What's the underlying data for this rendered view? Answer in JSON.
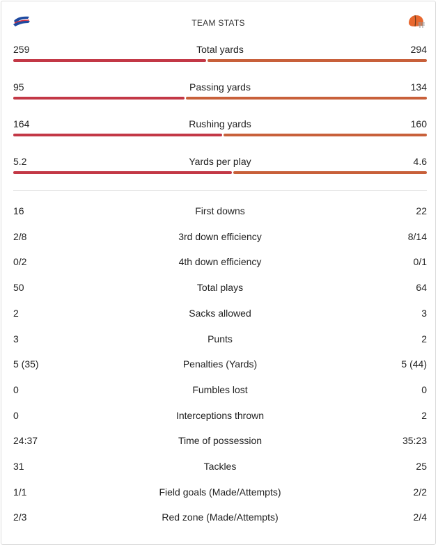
{
  "header": {
    "title": "TEAM STATS",
    "left_team_logo": "bills-logo-icon",
    "right_team_logo": "browns-helmet-icon"
  },
  "colors": {
    "left_team": "#c33846",
    "right_team": "#c8603a"
  },
  "bar_stats": [
    {
      "label": "Total yards",
      "left": "259",
      "right": "294",
      "left_share": 0.468
    },
    {
      "label": "Passing yards",
      "left": "95",
      "right": "134",
      "left_share": 0.415
    },
    {
      "label": "Rushing yards",
      "left": "164",
      "right": "160",
      "left_share": 0.506
    },
    {
      "label": "Yards per play",
      "left": "5.2",
      "right": "4.6",
      "left_share": 0.531
    }
  ],
  "stats": [
    {
      "label": "First downs",
      "left": "16",
      "right": "22"
    },
    {
      "label": "3rd down efficiency",
      "left": "2/8",
      "right": "8/14"
    },
    {
      "label": "4th down efficiency",
      "left": "0/2",
      "right": "0/1"
    },
    {
      "label": "Total plays",
      "left": "50",
      "right": "64"
    },
    {
      "label": "Sacks allowed",
      "left": "2",
      "right": "3"
    },
    {
      "label": "Punts",
      "left": "3",
      "right": "2"
    },
    {
      "label": "Penalties (Yards)",
      "left": "5 (35)",
      "right": "5 (44)"
    },
    {
      "label": "Fumbles lost",
      "left": "0",
      "right": "0"
    },
    {
      "label": "Interceptions thrown",
      "left": "0",
      "right": "2"
    },
    {
      "label": "Time of possession",
      "left": "24:37",
      "right": "35:23"
    },
    {
      "label": "Tackles",
      "left": "31",
      "right": "25"
    },
    {
      "label": "Field goals (Made/Attempts)",
      "left": "1/1",
      "right": "2/2"
    },
    {
      "label": "Red zone (Made/Attempts)",
      "left": "2/3",
      "right": "2/4"
    }
  ]
}
